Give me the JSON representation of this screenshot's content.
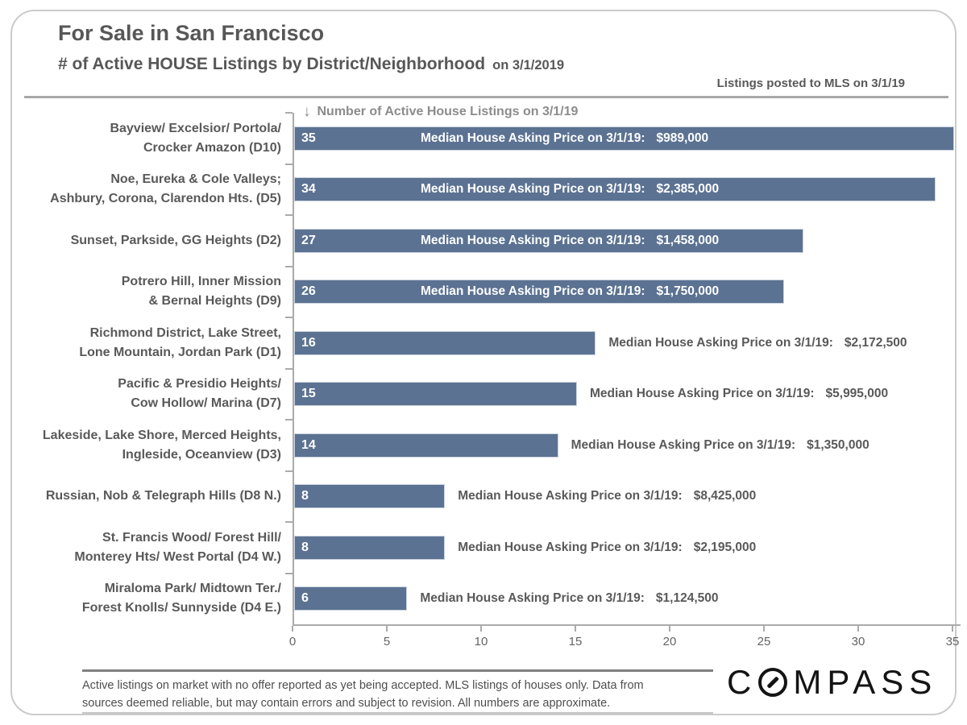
{
  "header": {
    "title": "For Sale in San Francisco",
    "subtitle": "# of Active HOUSE Listings by District/Neighborhood",
    "subtitle_date": "on 3/1/2019",
    "mls_note": "Listings posted to MLS on 3/1/19"
  },
  "chart_data": {
    "type": "bar",
    "orientation": "horizontal",
    "title": "For Sale in San Francisco — # of Active HOUSE Listings by District/Neighborhood on 3/1/2019",
    "axis_header": "Number of Active House Listings on 3/1/19",
    "axis_arrow": "↓",
    "xlabel": "",
    "ylabel": "",
    "xlim": [
      0,
      35
    ],
    "x_ticks": [
      0,
      5,
      10,
      15,
      20,
      25,
      30,
      35
    ],
    "grid": false,
    "legend": false,
    "bar_color": "#5B7292",
    "median_label": "Median House Asking Price on 3/1/19:",
    "categories": [
      "Bayview/ Excelsior/ Portola/ Crocker Amazon (D10)",
      "Noe, Eureka & Cole Valleys; Ashbury, Corona, Clarendon Hts. (D5)",
      "Sunset, Parkside, GG Heights (D2)",
      "Potrero Hill, Inner Mission & Bernal Heights (D9)",
      "Richmond District, Lake Street, Lone Mountain, Jordan Park (D1)",
      "Pacific & Presidio Heights/ Cow Hollow/ Marina (D7)",
      "Lakeside, Lake Shore, Merced Heights, Ingleside, Oceanview (D3)",
      "Russian, Nob & Telegraph Hills (D8 N.)",
      "St. Francis Wood/ Forest Hill/ Monterey Hts/ West Portal (D4 W.)",
      "Miraloma Park/ Midtown Ter./ Forest Knolls/ Sunnyside (D4 E.)"
    ],
    "values": [
      35,
      34,
      27,
      26,
      16,
      15,
      14,
      8,
      8,
      6
    ],
    "median_prices": [
      "$989,000",
      "$2,385,000",
      "$1,458,000",
      "$1,750,000",
      "$2,172,500",
      "$5,995,000",
      "$1,350,000",
      "$8,425,000",
      "$2,195,000",
      "$1,124,500"
    ],
    "bars": [
      {
        "label_lines": [
          "Bayview/ Excelsior/ Portola/",
          "Crocker Amazon (D10)"
        ],
        "value": 35,
        "median_price": "$989,000",
        "price_inside_bar": true
      },
      {
        "label_lines": [
          "Noe, Eureka & Cole Valleys;",
          "Ashbury, Corona, Clarendon Hts. (D5)"
        ],
        "value": 34,
        "median_price": "$2,385,000",
        "price_inside_bar": true
      },
      {
        "label_lines": [
          "Sunset, Parkside, GG Heights (D2)"
        ],
        "value": 27,
        "median_price": "$1,458,000",
        "price_inside_bar": true
      },
      {
        "label_lines": [
          "Potrero Hill, Inner Mission",
          "& Bernal Heights (D9)"
        ],
        "value": 26,
        "median_price": "$1,750,000",
        "price_inside_bar": true
      },
      {
        "label_lines": [
          "Richmond District, Lake Street,",
          "Lone Mountain, Jordan Park (D1)"
        ],
        "value": 16,
        "median_price": "$2,172,500",
        "price_inside_bar": false
      },
      {
        "label_lines": [
          "Pacific & Presidio Heights/",
          "Cow Hollow/ Marina (D7)"
        ],
        "value": 15,
        "median_price": "$5,995,000",
        "price_inside_bar": false
      },
      {
        "label_lines": [
          "Lakeside, Lake Shore, Merced Heights,",
          "Ingleside, Oceanview (D3)"
        ],
        "value": 14,
        "median_price": "$1,350,000",
        "price_inside_bar": false
      },
      {
        "label_lines": [
          "Russian, Nob & Telegraph Hills (D8 N.)"
        ],
        "value": 8,
        "median_price": "$8,425,000",
        "price_inside_bar": false
      },
      {
        "label_lines": [
          "St. Francis Wood/ Forest Hill/",
          "Monterey Hts/ West Portal (D4 W.)"
        ],
        "value": 8,
        "median_price": "$2,195,000",
        "price_inside_bar": false
      },
      {
        "label_lines": [
          "Miraloma Park/ Midtown Ter./",
          "Forest Knolls/ Sunnyside (D4 E.)"
        ],
        "value": 6,
        "median_price": "$1,124,500",
        "price_inside_bar": false
      }
    ]
  },
  "footer": {
    "disclaimer_lines": [
      "Active listings on market with no offer reported as yet being accepted. MLS listings of houses only. Data from",
      "sources deemed reliable, but may contain errors and subject to revision. All numbers are approximate."
    ],
    "logo_prefix": "C",
    "logo_suffix": "MPASS"
  }
}
